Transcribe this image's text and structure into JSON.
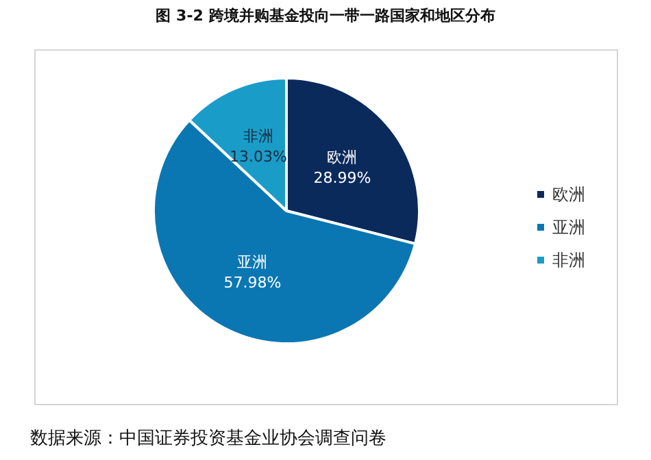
{
  "chart_data": {
    "type": "pie",
    "title": "图 3-2  跨境并购基金投向一带一路国家和地区分布",
    "categories": [
      "欧洲",
      "亚洲",
      "非洲"
    ],
    "values": [
      28.99,
      57.98,
      13.03
    ],
    "colors": [
      "#0b2a5c",
      "#0a77b3",
      "#1a9cc9"
    ],
    "value_labels": [
      "28.99%",
      "57.98%",
      "13.03%"
    ],
    "legend": "right",
    "annotations": [
      "数据来源：中国证券投资基金业协会调查问卷"
    ]
  }
}
